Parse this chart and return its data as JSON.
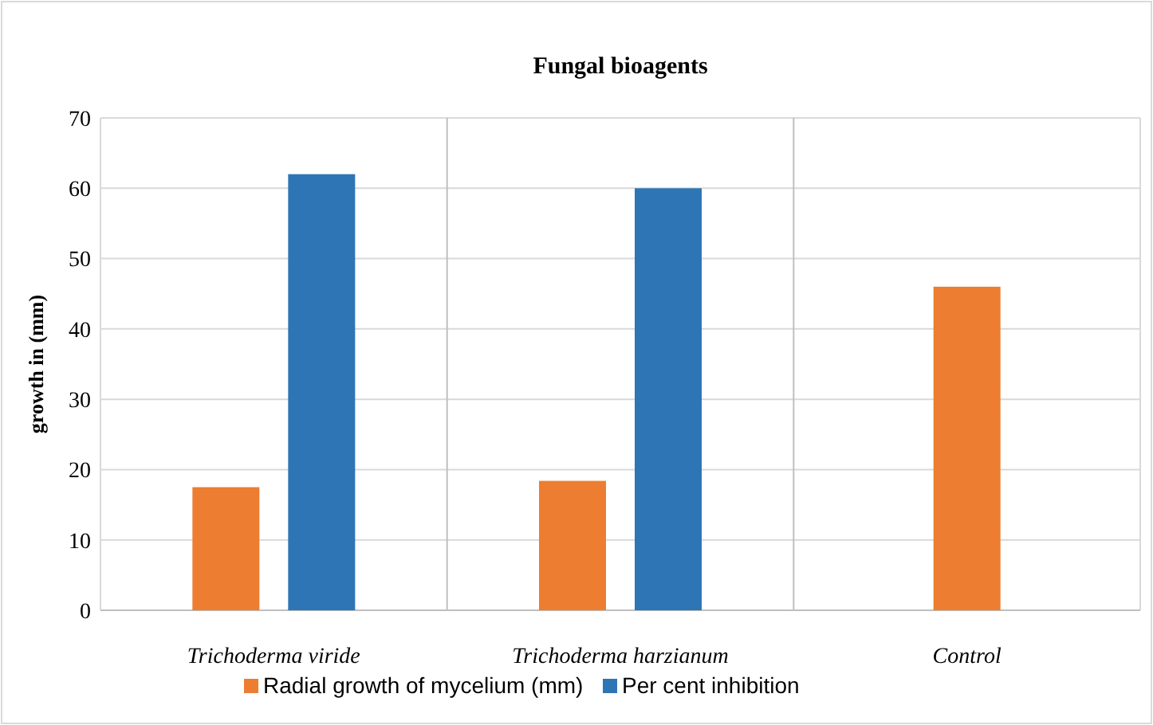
{
  "chart_data": {
    "type": "bar",
    "title": "Fungal bioagents",
    "ylabel": "growth in (mm)",
    "categories": [
      "Trichoderma viride",
      "Trichoderma harzianum",
      "Control"
    ],
    "series": [
      {
        "name": "Radial growth of mycelium (mm)",
        "color": "#ed7d31",
        "values": [
          17.5,
          18.4,
          46
        ]
      },
      {
        "name": "Per cent inhibition",
        "color": "#2e75b6",
        "values": [
          62,
          60,
          null
        ]
      }
    ],
    "ylim": [
      0,
      70
    ],
    "yticks": [
      0,
      10,
      20,
      30,
      40,
      50,
      60,
      70
    ],
    "grid": true,
    "legend": "bottom"
  }
}
